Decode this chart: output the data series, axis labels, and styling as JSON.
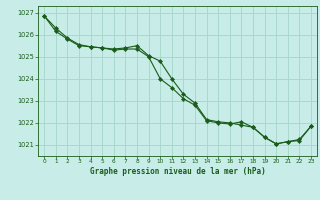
{
  "title": "Graphe pression niveau de la mer (hPa)",
  "background_color": "#c8ede8",
  "grid_color": "#aad8cc",
  "line_color": "#1a5c1a",
  "marker_color": "#1a5c1a",
  "xlim": [
    -0.5,
    23.5
  ],
  "ylim": [
    1020.5,
    1027.3
  ],
  "yticks": [
    1021,
    1022,
    1023,
    1024,
    1025,
    1026,
    1027
  ],
  "xticks": [
    0,
    1,
    2,
    3,
    4,
    5,
    6,
    7,
    8,
    9,
    10,
    11,
    12,
    13,
    14,
    15,
    16,
    17,
    18,
    19,
    20,
    21,
    22,
    23
  ],
  "series1_x": [
    0,
    1,
    2,
    3,
    4,
    5,
    6,
    7,
    8,
    9,
    10,
    11,
    12,
    13,
    14,
    15,
    16,
    17,
    18,
    19,
    20,
    21,
    22,
    23
  ],
  "series1_y": [
    1026.85,
    1026.3,
    1025.85,
    1025.55,
    1025.45,
    1025.4,
    1025.35,
    1025.4,
    1025.5,
    1025.05,
    1024.8,
    1024.0,
    1023.3,
    1022.9,
    1022.15,
    1022.05,
    1022.0,
    1021.9,
    1021.8,
    1021.35,
    1021.05,
    1021.15,
    1021.2,
    1021.85
  ],
  "series2_x": [
    0,
    1,
    2,
    3,
    4,
    5,
    6,
    7,
    8,
    9,
    10,
    11,
    12,
    13,
    14,
    15,
    16,
    17,
    18,
    19,
    20,
    21,
    22,
    23
  ],
  "series2_y": [
    1026.85,
    1026.15,
    1025.8,
    1025.5,
    1025.45,
    1025.4,
    1025.3,
    1025.35,
    1025.35,
    1025.0,
    1024.0,
    1023.6,
    1023.1,
    1022.8,
    1022.1,
    1022.0,
    1021.95,
    1022.05,
    1021.8,
    1021.35,
    1021.05,
    1021.15,
    1021.25,
    1021.85
  ]
}
